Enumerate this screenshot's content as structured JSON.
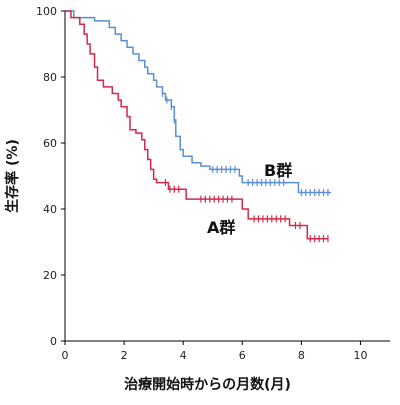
{
  "chart_data": {
    "type": "line",
    "subtype": "kaplan-meier-step",
    "xlabel": "治療開始時からの月数(月)",
    "ylabel": "生存率 (%)",
    "xlim": [
      0,
      10
    ],
    "ylim": [
      0,
      100
    ],
    "xticks": [
      0,
      2,
      4,
      6,
      8,
      10
    ],
    "yticks": [
      0,
      20,
      40,
      60,
      80,
      100
    ],
    "grid": false,
    "legend": "none",
    "series": [
      {
        "name": "B群",
        "color": "#5b8fd4",
        "steps": [
          [
            0,
            100
          ],
          [
            0.3,
            100
          ],
          [
            0.3,
            98
          ],
          [
            1.0,
            98
          ],
          [
            1.0,
            97
          ],
          [
            1.5,
            97
          ],
          [
            1.5,
            95
          ],
          [
            1.7,
            95
          ],
          [
            1.7,
            93
          ],
          [
            1.9,
            93
          ],
          [
            1.9,
            91
          ],
          [
            2.1,
            91
          ],
          [
            2.1,
            89
          ],
          [
            2.3,
            89
          ],
          [
            2.3,
            87
          ],
          [
            2.5,
            87
          ],
          [
            2.5,
            85
          ],
          [
            2.7,
            85
          ],
          [
            2.7,
            83
          ],
          [
            2.8,
            83
          ],
          [
            2.8,
            81
          ],
          [
            3.0,
            81
          ],
          [
            3.0,
            79
          ],
          [
            3.1,
            79
          ],
          [
            3.1,
            77
          ],
          [
            3.3,
            77
          ],
          [
            3.3,
            75
          ],
          [
            3.4,
            75
          ],
          [
            3.4,
            73
          ],
          [
            3.6,
            73
          ],
          [
            3.6,
            71
          ],
          [
            3.7,
            71
          ],
          [
            3.7,
            67
          ],
          [
            3.75,
            67
          ],
          [
            3.75,
            62
          ],
          [
            3.9,
            62
          ],
          [
            3.9,
            58
          ],
          [
            4.0,
            58
          ],
          [
            4.0,
            56
          ],
          [
            4.3,
            56
          ],
          [
            4.3,
            54
          ],
          [
            4.6,
            54
          ],
          [
            4.6,
            53
          ],
          [
            4.9,
            53
          ],
          [
            4.9,
            52
          ],
          [
            5.9,
            52
          ],
          [
            5.9,
            50
          ],
          [
            6.0,
            50
          ],
          [
            6.0,
            48
          ],
          [
            7.9,
            48
          ],
          [
            7.9,
            45
          ],
          [
            9.0,
            45
          ]
        ],
        "censor_x": [
          3.3,
          3.45,
          3.6,
          3.7,
          5.0,
          5.15,
          5.3,
          5.45,
          5.6,
          5.75,
          6.2,
          6.35,
          6.5,
          6.65,
          6.8,
          6.95,
          7.1,
          7.25,
          7.4,
          8.0,
          8.15,
          8.3,
          8.45,
          8.6,
          8.75,
          8.9
        ],
        "label": "B群"
      },
      {
        "name": "A群",
        "color": "#d4284a",
        "steps": [
          [
            0,
            100
          ],
          [
            0.2,
            100
          ],
          [
            0.2,
            98
          ],
          [
            0.5,
            98
          ],
          [
            0.5,
            96
          ],
          [
            0.65,
            96
          ],
          [
            0.65,
            93
          ],
          [
            0.75,
            93
          ],
          [
            0.75,
            90
          ],
          [
            0.85,
            90
          ],
          [
            0.85,
            87
          ],
          [
            1.0,
            87
          ],
          [
            1.0,
            83
          ],
          [
            1.1,
            83
          ],
          [
            1.1,
            79
          ],
          [
            1.3,
            79
          ],
          [
            1.3,
            77
          ],
          [
            1.6,
            77
          ],
          [
            1.6,
            75
          ],
          [
            1.8,
            75
          ],
          [
            1.8,
            73
          ],
          [
            1.9,
            73
          ],
          [
            1.9,
            71
          ],
          [
            2.1,
            71
          ],
          [
            2.1,
            68
          ],
          [
            2.2,
            68
          ],
          [
            2.2,
            64
          ],
          [
            2.4,
            64
          ],
          [
            2.4,
            63
          ],
          [
            2.6,
            63
          ],
          [
            2.6,
            61
          ],
          [
            2.7,
            61
          ],
          [
            2.7,
            58
          ],
          [
            2.8,
            58
          ],
          [
            2.8,
            55
          ],
          [
            2.9,
            55
          ],
          [
            2.9,
            52
          ],
          [
            3.0,
            52
          ],
          [
            3.0,
            49
          ],
          [
            3.1,
            49
          ],
          [
            3.1,
            48
          ],
          [
            3.5,
            48
          ],
          [
            3.5,
            46
          ],
          [
            4.1,
            46
          ],
          [
            4.1,
            43
          ],
          [
            6.0,
            43
          ],
          [
            6.0,
            40
          ],
          [
            6.2,
            40
          ],
          [
            6.2,
            37
          ],
          [
            7.6,
            37
          ],
          [
            7.6,
            35
          ],
          [
            8.2,
            35
          ],
          [
            8.2,
            31
          ],
          [
            8.9,
            31
          ]
        ],
        "censor_x": [
          3.4,
          3.55,
          3.7,
          3.85,
          4.6,
          4.75,
          4.9,
          5.05,
          5.2,
          5.35,
          5.5,
          5.65,
          6.4,
          6.55,
          6.7,
          6.85,
          7.0,
          7.15,
          7.3,
          7.45,
          7.8,
          7.95,
          8.3,
          8.45,
          8.6,
          8.75,
          8.9
        ],
        "label": "A群"
      }
    ]
  }
}
